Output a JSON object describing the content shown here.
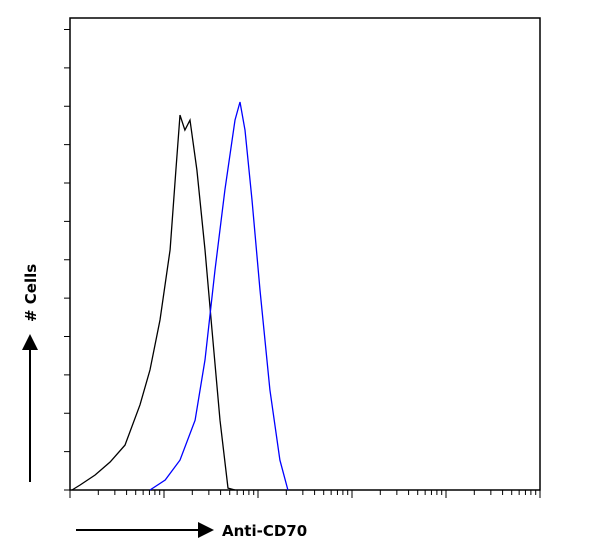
{
  "chart_data": {
    "type": "line",
    "x_label": "Anti-CD70",
    "y_label": "# Cells",
    "xscale": "log",
    "xlim": [
      1,
      100000
    ],
    "xticks": [
      1,
      10,
      100,
      1000,
      10000,
      100000
    ],
    "ylim": [
      0,
      12.3
    ],
    "yticks": [
      0,
      1,
      2,
      3,
      4,
      5,
      6,
      7,
      8,
      9,
      10,
      11,
      12
    ],
    "series": [
      {
        "color": "#000000",
        "x": [
          1.05,
          1.28,
          1.85,
          2.67,
          3.85,
          5.55,
          7.1,
          9.06,
          11.6,
          13.4,
          14.8,
          16.7,
          18.9,
          22.4,
          27.3,
          32.4,
          39.4,
          48,
          56.9
        ],
        "values": [
          0,
          0.13,
          0.39,
          0.73,
          1.17,
          2.22,
          3.13,
          4.43,
          6.26,
          8.34,
          9.77,
          9.38,
          9.64,
          8.34,
          6.26,
          4.17,
          1.82,
          0.05,
          0
        ]
      },
      {
        "color": "#0000ff",
        "x": [
          7.1,
          10.3,
          14.8,
          21.4,
          27.3,
          34.9,
          44.5,
          56.9,
          64.4,
          72.8,
          86.3,
          105,
          134,
          171,
          208
        ],
        "values": [
          0,
          0.26,
          0.78,
          1.82,
          3.39,
          5.73,
          7.82,
          9.64,
          10.11,
          9.38,
          7.56,
          5.21,
          2.61,
          0.78,
          0
        ]
      }
    ]
  }
}
